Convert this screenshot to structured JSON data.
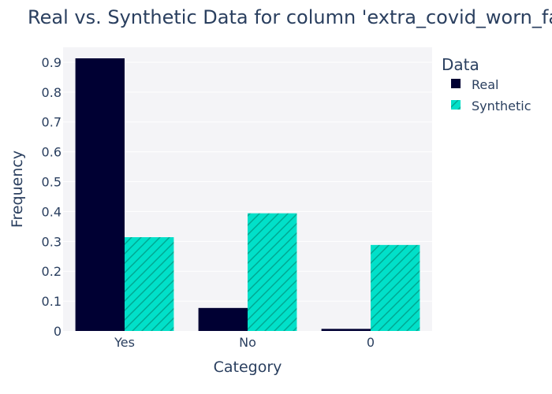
{
  "chart_data": {
    "type": "bar",
    "title": "Real vs. Synthetic Data for column 'extra_covid_worn_face_mask'",
    "xlabel": "Category",
    "ylabel": "Frequency",
    "categories": [
      "Yes",
      "No",
      "0"
    ],
    "series": [
      {
        "name": "Real",
        "values": [
          0.913,
          0.077,
          0.007
        ]
      },
      {
        "name": "Synthetic",
        "values": [
          0.314,
          0.394,
          0.288
        ]
      }
    ],
    "ylim": [
      0,
      0.95
    ],
    "yticks": [
      "0",
      "0.1",
      "0.2",
      "0.3",
      "0.4",
      "0.5",
      "0.6",
      "0.7",
      "0.8",
      "0.9"
    ],
    "legend_title": "Data",
    "legend_position": "top-right",
    "grid": true,
    "colors": {
      "real": "#000033",
      "synthetic": "#01e0c9",
      "hatch": "#00a892",
      "plot_bg": "#f4f4f7",
      "grid": "#ffffff",
      "text": "#2a3f5f"
    }
  }
}
